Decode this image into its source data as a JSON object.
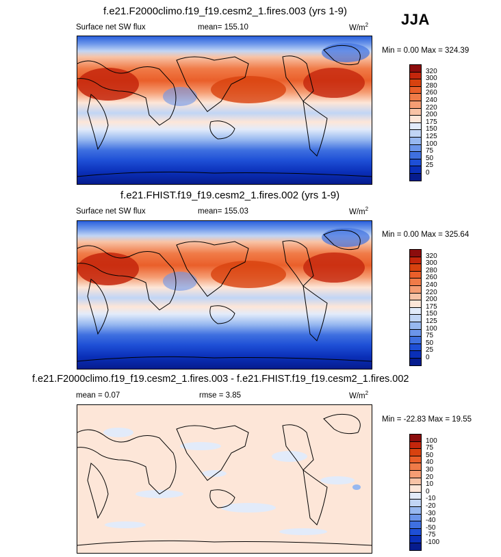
{
  "season": "JJA",
  "panels": [
    {
      "title": "f.e21.F2000climo.f19_f19.cesm2_1.fires.003 (yrs 1-9)",
      "variable": "Surface net SW flux",
      "mean": "mean= 155.10",
      "units": "W/m",
      "units_sup": "2",
      "minmax": "Min =   0.00 Max = 324.39"
    },
    {
      "title": "f.e21.FHIST.f19_f19.cesm2_1.fires.002 (yrs 1-9)",
      "variable": "Surface net SW flux",
      "mean": "mean= 155.03",
      "units": "W/m",
      "units_sup": "2",
      "minmax": "Min =   0.00 Max = 325.64"
    },
    {
      "title": "f.e21.F2000climo.f19_f19.cesm2_1.fires.003 - f.e21.FHIST.f19_f19.cesm2_1.fires.002",
      "mean": "mean =   0.07",
      "rmse": "rmse =   3.85",
      "units": "W/m",
      "units_sup": "2",
      "minmax": "Min = -22.83 Max =  19.55"
    }
  ],
  "colorbars": {
    "abs": {
      "labels": [
        "320",
        "300",
        "280",
        "260",
        "240",
        "220",
        "200",
        "175",
        "150",
        "125",
        "100",
        "75",
        "50",
        "25",
        "0"
      ],
      "colors": [
        "#8c0d0d",
        "#c4260c",
        "#d8420f",
        "#ea5f2a",
        "#f07b48",
        "#f59d73",
        "#f8c3a6",
        "#fde6d8",
        "#e2ebfa",
        "#c1d5f5",
        "#97b8f0",
        "#6b95ea",
        "#3f70e0",
        "#1e4fd6",
        "#0a2fb8",
        "#061c8e"
      ]
    },
    "diff": {
      "labels": [
        "100",
        "75",
        "50",
        "40",
        "30",
        "20",
        "10",
        "0",
        "-10",
        "-20",
        "-30",
        "-40",
        "-50",
        "-75",
        "-100"
      ],
      "colors": [
        "#8c0d0d",
        "#c4260c",
        "#d8420f",
        "#ea5f2a",
        "#f07b48",
        "#f59d73",
        "#f8c3a6",
        "#fde6d8",
        "#e2ebfa",
        "#c1d5f5",
        "#97b8f0",
        "#6b95ea",
        "#3f70e0",
        "#1e4fd6",
        "#0a2fb8",
        "#061c8e"
      ]
    }
  },
  "chart_data": [
    {
      "type": "heatmap",
      "title": "f.e21.F2000climo.f19_f19.cesm2_1.fires.003 (yrs 1-9)",
      "variable": "Surface net SW flux",
      "season": "JJA",
      "units": "W/m2",
      "mean": 155.1,
      "min": 0.0,
      "max": 324.39,
      "contour_levels": [
        0,
        25,
        50,
        75,
        100,
        125,
        150,
        175,
        200,
        220,
        240,
        260,
        280,
        300,
        320
      ]
    },
    {
      "type": "heatmap",
      "title": "f.e21.FHIST.f19_f19.cesm2_1.fires.002 (yrs 1-9)",
      "variable": "Surface net SW flux",
      "season": "JJA",
      "units": "W/m2",
      "mean": 155.03,
      "min": 0.0,
      "max": 325.64,
      "contour_levels": [
        0,
        25,
        50,
        75,
        100,
        125,
        150,
        175,
        200,
        220,
        240,
        260,
        280,
        300,
        320
      ]
    },
    {
      "type": "heatmap",
      "title": "f.e21.F2000climo.f19_f19.cesm2_1.fires.003 - f.e21.FHIST.f19_f19.cesm2_1.fires.002",
      "season": "JJA",
      "units": "W/m2",
      "mean": 0.07,
      "rmse": 3.85,
      "min": -22.83,
      "max": 19.55,
      "contour_levels": [
        -100,
        -75,
        -50,
        -40,
        -30,
        -20,
        -10,
        0,
        10,
        20,
        30,
        40,
        50,
        75,
        100
      ]
    }
  ]
}
